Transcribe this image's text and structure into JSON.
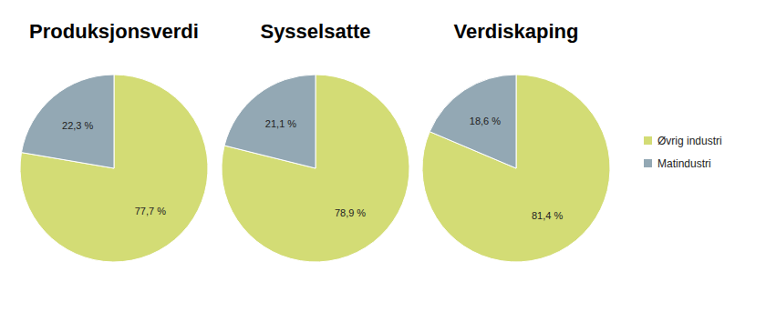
{
  "chart_data": {
    "type": "pie",
    "categories": [
      "Øvrig industri",
      "Matindustri"
    ],
    "colors": [
      "#d3dc75",
      "#93a8b4"
    ],
    "legend": "right",
    "data_labels": true,
    "series": [
      {
        "name": "Produksjonsverdi",
        "values": [
          77.7,
          22.3
        ],
        "value_labels": [
          "77,7 %",
          "22,3 %"
        ]
      },
      {
        "name": "Sysselsatte",
        "values": [
          78.9,
          21.1
        ],
        "value_labels": [
          "78,9 %",
          "21,1 %"
        ]
      },
      {
        "name": "Verdiskaping",
        "values": [
          81.4,
          18.6
        ],
        "value_labels": [
          "81,4 %",
          "18,6 %"
        ]
      }
    ]
  }
}
